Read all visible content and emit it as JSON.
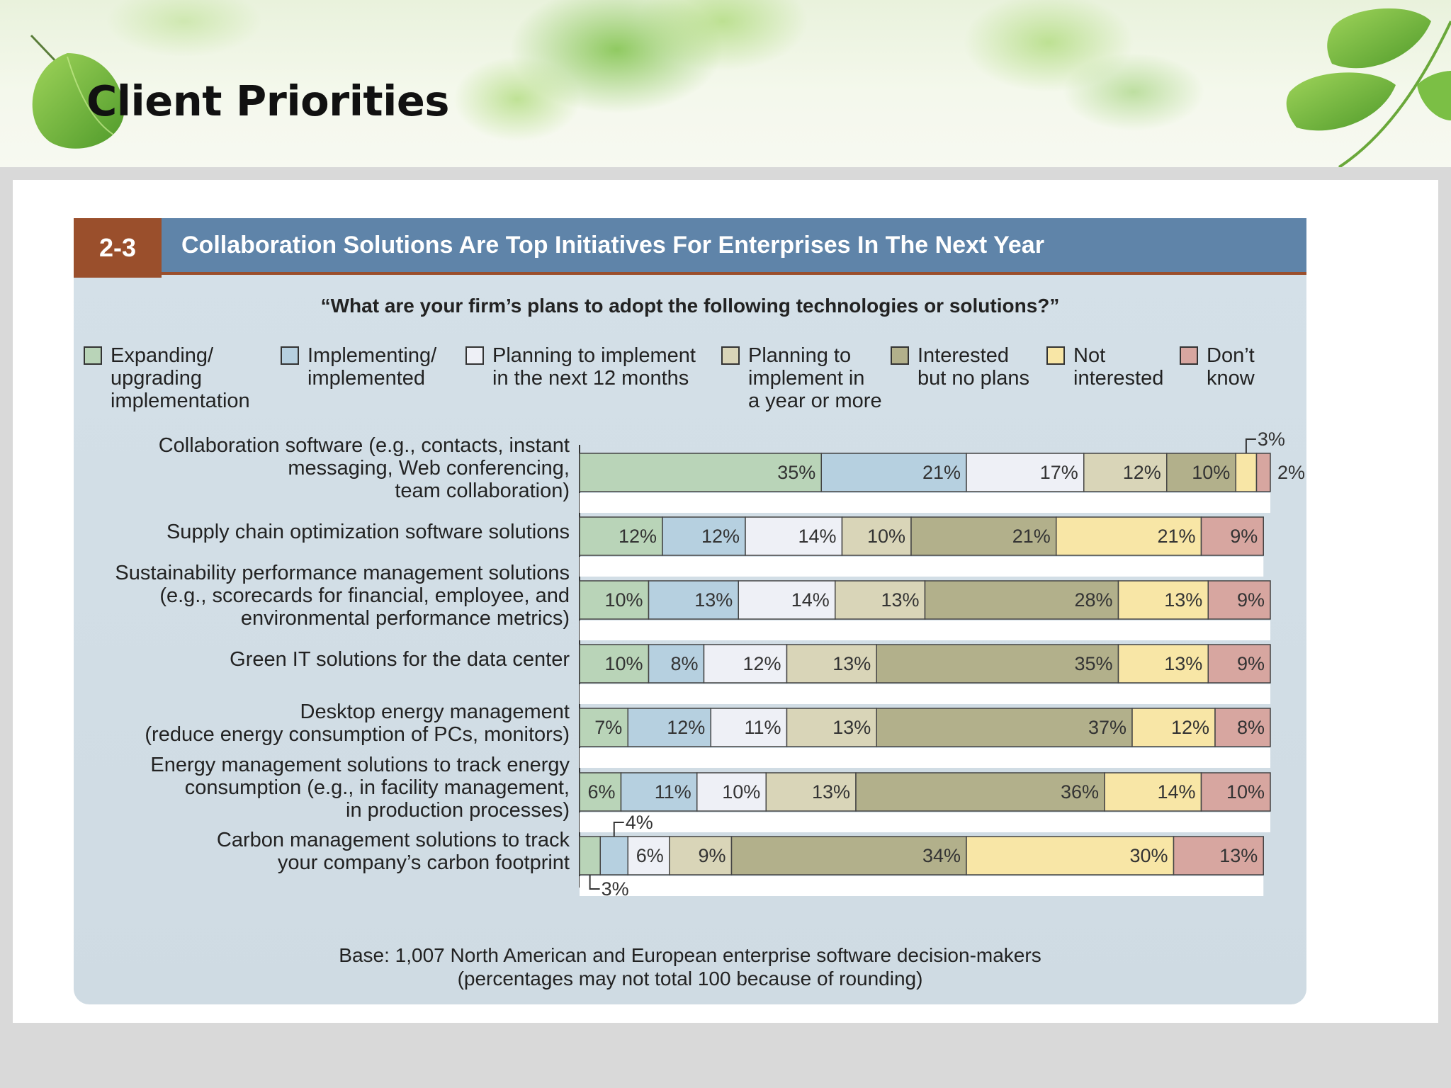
{
  "slide": {
    "title": "Client Priorities"
  },
  "figure": {
    "number": "2-3",
    "title": "Collaboration Solutions Are Top Initiatives For Enterprises In The Next Year",
    "question": "“What are your firm’s plans to adopt the following technologies or solutions?”",
    "base_note_1": "Base: 1,007 North American and European enterprise software decision-makers",
    "base_note_2": "(percentages may not total 100 because of rounding)"
  },
  "legend": [
    {
      "lines": [
        "Expanding/",
        "upgrading",
        "implementation"
      ],
      "color": "#b9d4b8"
    },
    {
      "lines": [
        "Implementing/",
        "implemented"
      ],
      "color": "#b6d0e0"
    },
    {
      "lines": [
        "Planning to implement",
        "in the next 12 months"
      ],
      "color": "#eef0f6"
    },
    {
      "lines": [
        "Planning to",
        "implement in",
        "a year or more"
      ],
      "color": "#d9d5b8"
    },
    {
      "lines": [
        "Interested",
        "but no plans"
      ],
      "color": "#b2b08b"
    },
    {
      "lines": [
        "Not",
        "interested"
      ],
      "color": "#f8e6a6"
    },
    {
      "lines": [
        "Don’t",
        "know"
      ],
      "color": "#d7a6a0"
    }
  ],
  "chart_data": {
    "type": "bar",
    "orientation": "horizontal",
    "stacked": true,
    "xlim": [
      0,
      100
    ],
    "categories": [
      [
        "Collaboration software (e.g., contacts, instant",
        "messaging, Web conferencing,",
        "team collaboration)"
      ],
      [
        "Supply chain optimization software solutions"
      ],
      [
        "Sustainability performance management solutions",
        "(e.g., scorecards for financial, employee, and",
        "environmental performance metrics)"
      ],
      [
        "Green IT solutions for the data center"
      ],
      [
        "Desktop energy management",
        "(reduce energy consumption of PCs, monitors)"
      ],
      [
        "Energy management solutions to track energy",
        "consumption (e.g., in facility management,",
        "in production processes)"
      ],
      [
        "Carbon management solutions to track",
        "your company’s carbon footprint"
      ]
    ],
    "series": [
      {
        "name": "Expanding/ upgrading implementation",
        "values": [
          35,
          12,
          10,
          10,
          7,
          6,
          3
        ]
      },
      {
        "name": "Implementing/ implemented",
        "values": [
          21,
          12,
          13,
          8,
          12,
          11,
          4
        ]
      },
      {
        "name": "Planning to implement in the next 12 months",
        "values": [
          17,
          14,
          14,
          12,
          11,
          10,
          6
        ]
      },
      {
        "name": "Planning to implement in a year or more",
        "values": [
          12,
          10,
          13,
          13,
          13,
          13,
          9
        ]
      },
      {
        "name": "Interested but no plans",
        "values": [
          10,
          21,
          28,
          35,
          37,
          36,
          34
        ]
      },
      {
        "name": "Not interested",
        "values": [
          3,
          21,
          13,
          13,
          12,
          14,
          30
        ]
      },
      {
        "name": "Don’t know",
        "values": [
          2,
          9,
          9,
          9,
          8,
          10,
          13
        ]
      }
    ],
    "labels": [
      [
        "35%",
        "21%",
        "17%",
        "12%",
        "10%",
        "3%",
        "2%"
      ],
      [
        "12%",
        "12%",
        "14%",
        "10%",
        "21%",
        "21%",
        "9%"
      ],
      [
        "10%",
        "13%",
        "14%",
        "13%",
        "28%",
        "13%",
        "9%"
      ],
      [
        "10%",
        "8%",
        "12%",
        "13%",
        "35%",
        "13%",
        "9%"
      ],
      [
        "7%",
        "12%",
        "11%",
        "13%",
        "37%",
        "12%",
        "8%"
      ],
      [
        "6%",
        "11%",
        "10%",
        "13%",
        "36%",
        "14%",
        "10%"
      ],
      [
        "3%",
        "4%",
        "6%",
        "9%",
        "34%",
        "30%",
        "13%"
      ]
    ],
    "colors": [
      "#b9d4b8",
      "#b6d0e0",
      "#eef0f6",
      "#d9d5b8",
      "#b2b08b",
      "#f8e6a6",
      "#d7a6a0"
    ],
    "legend_position": "top",
    "grid": false
  }
}
